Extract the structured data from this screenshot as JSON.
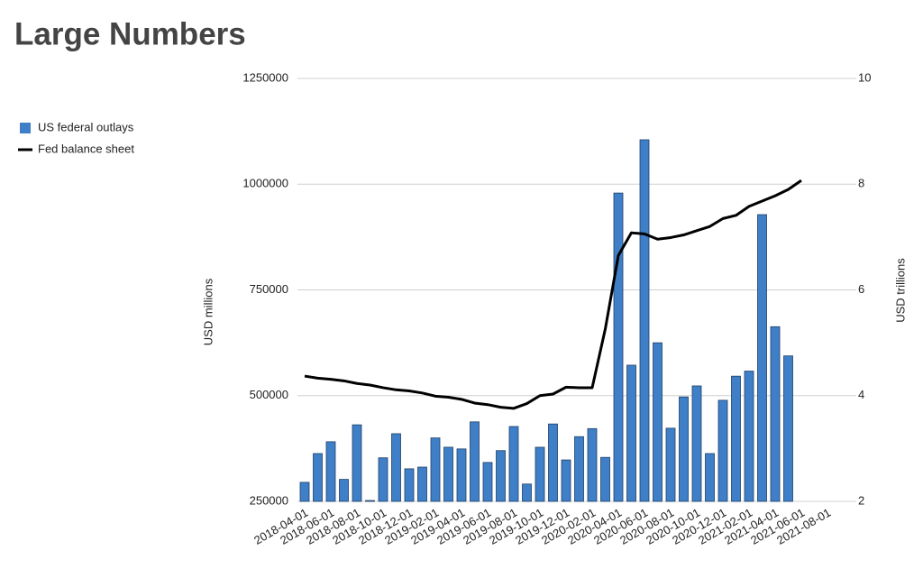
{
  "chart_data": {
    "type": "bar_line",
    "title": "Large Numbers",
    "categories": [
      "2018-04-01",
      null,
      "2018-06-01",
      null,
      "2018-08-01",
      null,
      "2018-10-01",
      null,
      "2018-12-01",
      null,
      "2019-02-01",
      null,
      "2019-04-01",
      null,
      "2019-06-01",
      null,
      "2019-08-01",
      null,
      "2019-10-01",
      null,
      "2019-12-01",
      null,
      "2020-02-01",
      null,
      "2020-04-01",
      null,
      "2020-06-01",
      null,
      "2020-08-01",
      null,
      "2020-10-01",
      null,
      "2020-12-01",
      null,
      "2021-02-01",
      null,
      "2021-04-01",
      null,
      "2021-06-01",
      null,
      "2021-08-01"
    ],
    "series": [
      {
        "name": "US federal outlays",
        "type": "bar",
        "color": "#3f7fc7",
        "values": [
          295000,
          363000,
          391000,
          302000,
          431000,
          252000,
          353000,
          410000,
          327000,
          331000,
          400000,
          378000,
          374000,
          438000,
          342000,
          370000,
          427000,
          291000,
          378000,
          433000,
          348000,
          403000,
          422000,
          354000,
          979000,
          572000,
          1105000,
          625000,
          423000,
          497000,
          523000,
          363000,
          489000,
          546000,
          558000,
          928000,
          663000,
          594000,
          null,
          null,
          null
        ]
      },
      {
        "name": "Fed balance sheet",
        "type": "line",
        "axis": "y2",
        "color": "#000000",
        "values": [
          4.37,
          4.33,
          4.31,
          4.28,
          4.23,
          4.2,
          4.15,
          4.11,
          4.09,
          4.05,
          3.99,
          3.97,
          3.93,
          3.86,
          3.83,
          3.78,
          3.76,
          3.85,
          4.0,
          4.03,
          4.16,
          4.15,
          4.15,
          5.26,
          6.65,
          7.08,
          7.06,
          6.96,
          6.99,
          7.04,
          7.12,
          7.2,
          7.35,
          7.41,
          7.58,
          7.68,
          7.78,
          7.9,
          8.07,
          null,
          null
        ]
      }
    ],
    "ylabel": "USD millions",
    "y2label": "USD trillions",
    "ylim": [
      250000,
      1250000
    ],
    "yticks": [
      250000,
      500000,
      750000,
      1000000,
      1250000
    ],
    "y2lim": [
      2,
      10
    ],
    "y2ticks": [
      2,
      4,
      6,
      8,
      10
    ],
    "grid": true,
    "legend": "left"
  }
}
